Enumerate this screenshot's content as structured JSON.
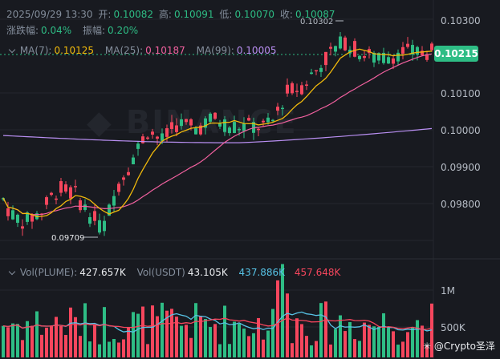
{
  "header": {
    "date": "2025/09/29 13:30",
    "open_label": "开:",
    "open": "0.10082",
    "high_label": "高:",
    "high": "0.10091",
    "low_label": "低:",
    "low": "0.10070",
    "close_label": "收:",
    "close": "0.10087",
    "change_label": "涨跌幅:",
    "change": "0.04%",
    "amp_label": "振幅:",
    "amp": "0.20%"
  },
  "ma": {
    "ma7_label": "MA(7):",
    "ma7": "0.10125",
    "ma25_label": "MA(25):",
    "ma25": "0.10187",
    "ma99_label": "MA(99):",
    "ma99": "0.10005"
  },
  "vol": {
    "plume_label": "Vol(PLUME):",
    "plume": "427.657K",
    "usdt_label": "Vol(USDT)",
    "usdt": "43.105K",
    "v1": "437.886K",
    "v2": "457.648K"
  },
  "price_axis": [
    "0.10300",
    "0.10100",
    "0.10000",
    "0.09900",
    "0.09800"
  ],
  "current_price": "0.10215",
  "high_marker": "0.10302",
  "low_marker": "0.09709",
  "vol_axis": [
    "1M",
    "500K"
  ],
  "watermark": "@Crypto圣泽",
  "colors": {
    "up": "#2ebd85",
    "down": "#f6465d",
    "ma7": "#f0b90b",
    "ma25": "#f0609e",
    "ma99": "#b98ff2",
    "bg": "#181a20"
  }
}
